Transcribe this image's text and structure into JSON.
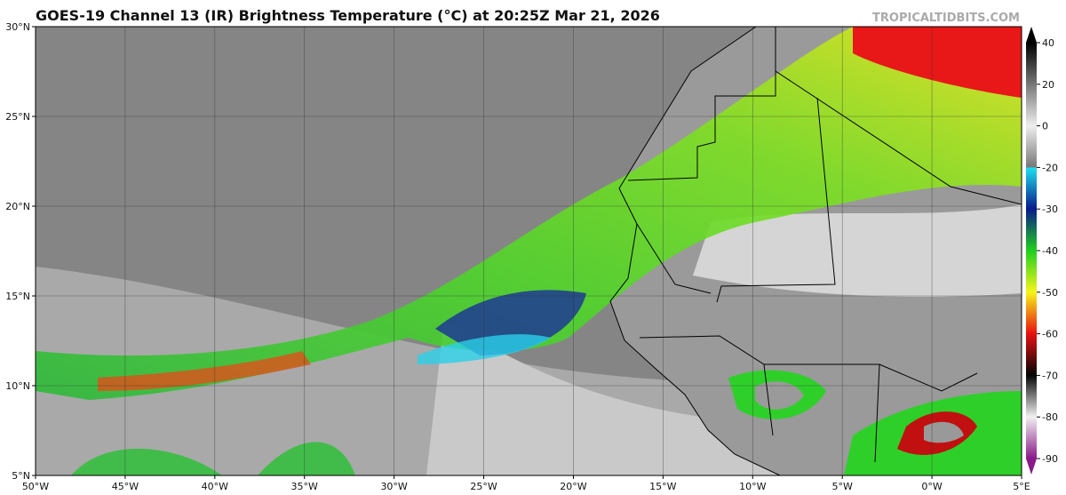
{
  "header": {
    "title": "GOES-19 Channel 13 (IR) Brightness Temperature (°C) at 20:25Z Mar 21, 2026",
    "watermark": "TROPICALTIDBITS.COM"
  },
  "map": {
    "xlim": [
      -50,
      5
    ],
    "ylim": [
      5,
      30
    ],
    "xticks": [
      {
        "value": -50,
        "label": "50°W"
      },
      {
        "value": -45,
        "label": "45°W"
      },
      {
        "value": -40,
        "label": "40°W"
      },
      {
        "value": -35,
        "label": "35°W"
      },
      {
        "value": -30,
        "label": "30°W"
      },
      {
        "value": -25,
        "label": "25°W"
      },
      {
        "value": -20,
        "label": "20°W"
      },
      {
        "value": -15,
        "label": "15°W"
      },
      {
        "value": -10,
        "label": "10°W"
      },
      {
        "value": -5,
        "label": "5°W"
      },
      {
        "value": 0,
        "label": "0°W"
      },
      {
        "value": 5,
        "label": "5°E"
      }
    ],
    "yticks": [
      {
        "value": 5,
        "label": "5°N"
      },
      {
        "value": 10,
        "label": "10°N"
      },
      {
        "value": 15,
        "label": "15°N"
      },
      {
        "value": 20,
        "label": "20°N"
      },
      {
        "value": 25,
        "label": "25°N"
      },
      {
        "value": 30,
        "label": "30°N"
      }
    ]
  },
  "colorbar": {
    "ticks": [
      40,
      20,
      0,
      -20,
      -30,
      -40,
      -50,
      -60,
      -70,
      -80,
      -90
    ]
  }
}
